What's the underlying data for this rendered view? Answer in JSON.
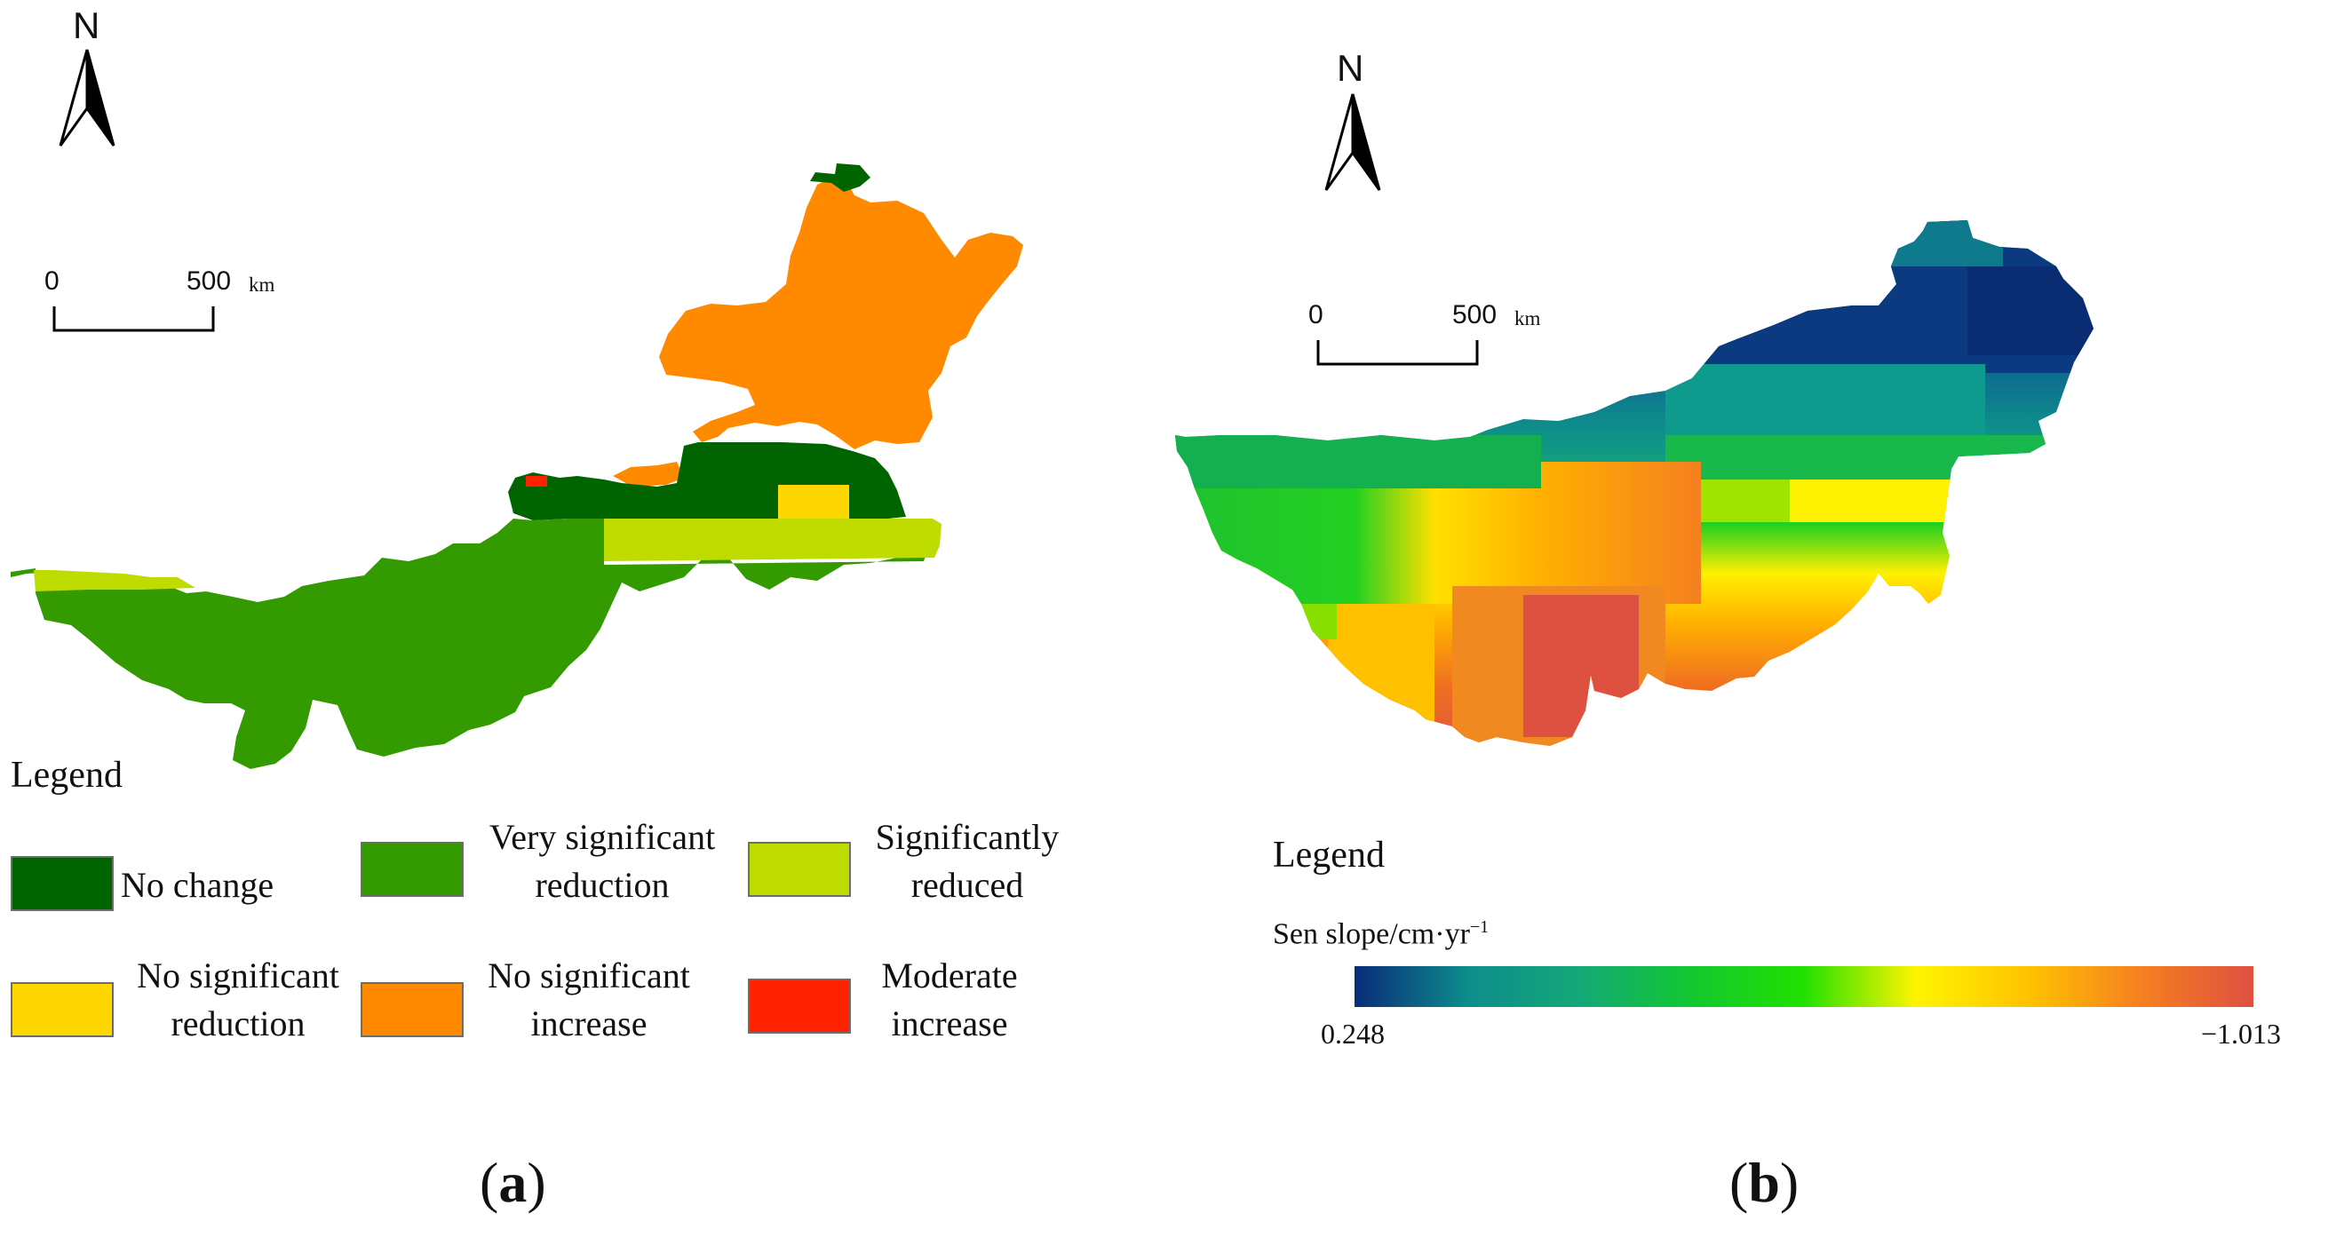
{
  "figure": {
    "panel_a": {
      "north_letter": "N",
      "scale": {
        "zero": "0",
        "distance": "500",
        "unit": "km"
      },
      "legend_title": "Legend",
      "categories": [
        {
          "line1": "No change",
          "line2": "",
          "color": "#006400"
        },
        {
          "line1": "Very significant",
          "line2": "reduction",
          "color": "#339A00"
        },
        {
          "line1": "Significantly",
          "line2": "reduced",
          "color": "#BFDC00"
        },
        {
          "line1": "No significant",
          "line2": "reduction",
          "color": "#FFD700"
        },
        {
          "line1": "No significant",
          "line2": "increase",
          "color": "#FF8A00"
        },
        {
          "line1": "Moderate",
          "line2": "increase",
          "color": "#FF2200"
        }
      ],
      "label_open": "(",
      "label_letter": "a",
      "label_close": ")"
    },
    "panel_b": {
      "north_letter": "N",
      "scale": {
        "zero": "0",
        "distance": "500",
        "unit": "km"
      },
      "legend_title": "Legend",
      "colorbar": {
        "title": "Sen slope/cm·yr",
        "title_sup": "−1",
        "min_label": "0.248",
        "max_label": "−1.013",
        "stops": [
          "#0A2C7A",
          "#0E8C8C",
          "#14A878",
          "#12C830",
          "#22E000",
          "#FFF500",
          "#FFC200",
          "#F58020",
          "#DE5040"
        ]
      },
      "label_open": "(",
      "label_letter": "b",
      "label_close": ")"
    }
  }
}
